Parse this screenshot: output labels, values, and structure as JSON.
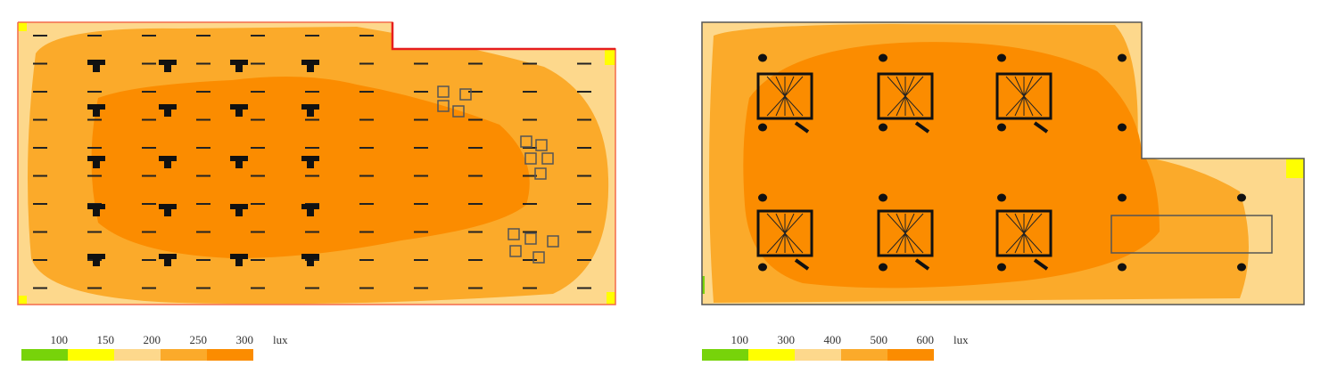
{
  "panels": [
    {
      "legend": {
        "ticks": [
          100,
          150,
          200,
          250,
          300
        ],
        "unit": "lux",
        "colors": [
          "#77d30a",
          "#ffff00",
          "#fdd88c",
          "#fbaa2a",
          "#fb8c00"
        ]
      }
    },
    {
      "legend": {
        "ticks": [
          100,
          300,
          400,
          500,
          600
        ],
        "unit": "lux",
        "colors": [
          "#77d30a",
          "#ffff00",
          "#fdd88c",
          "#fbaa2a",
          "#fb8c00"
        ]
      }
    }
  ]
}
